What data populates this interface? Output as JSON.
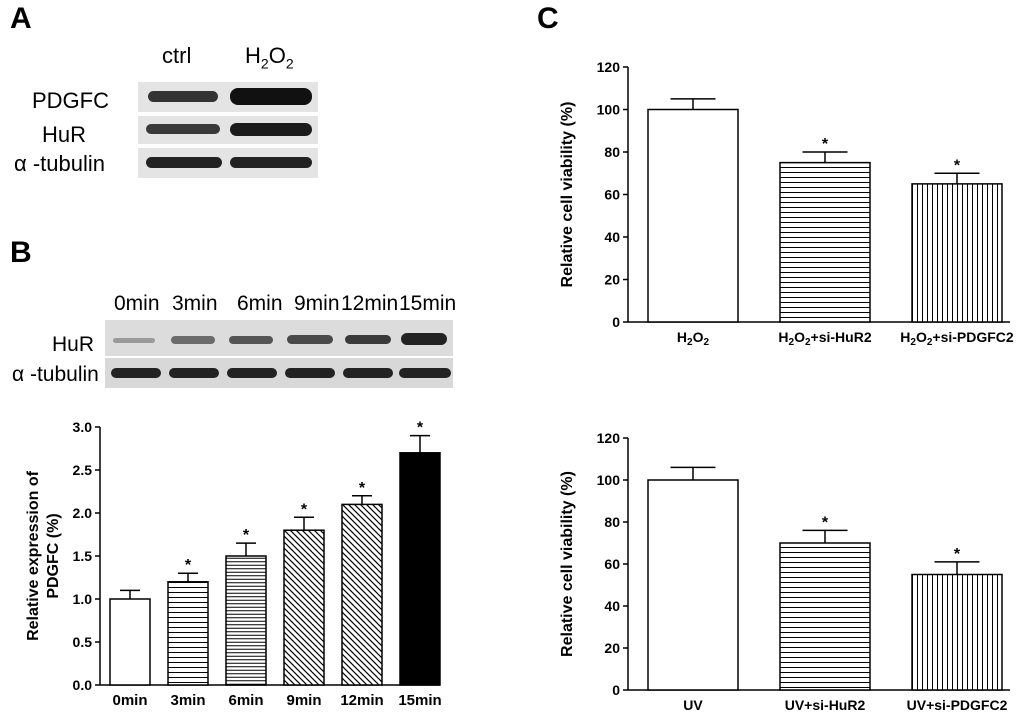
{
  "panels": {
    "a": "A",
    "b": "B",
    "c": "C"
  },
  "blot_a": {
    "lanes": [
      "ctrl",
      "H2O2"
    ],
    "proteins": [
      "PDGFC",
      "HuR",
      "α -tubulin"
    ]
  },
  "blot_b": {
    "lanes": [
      "0min",
      "3min",
      "6min",
      "9min",
      "12min",
      "15min"
    ],
    "proteins": [
      "HuR",
      "α -tubulin"
    ]
  },
  "chart_data": [
    {
      "id": "b",
      "type": "bar",
      "categories": [
        "0min",
        "3min",
        "6min",
        "9min",
        "12min",
        "15min"
      ],
      "values": [
        1.0,
        1.2,
        1.5,
        1.8,
        2.1,
        2.7
      ],
      "errors": [
        0.1,
        0.1,
        0.15,
        0.15,
        0.1,
        0.2
      ],
      "significant": [
        "",
        "*",
        "*",
        "*",
        "*",
        "*"
      ],
      "fills": [
        "white",
        "horizontal-lines",
        "horizontal-lines-dense",
        "diagonal-lines",
        "diagonal-lines",
        "black"
      ],
      "ylabel": "Relative expression of PDGFC (%)",
      "ylim": [
        0,
        3.0
      ],
      "yticks": [
        "0.0",
        "0.5",
        "1.0",
        "1.5",
        "2.0",
        "2.5",
        "3.0"
      ]
    },
    {
      "id": "c-top",
      "type": "bar",
      "categories": [
        "H₂O₂",
        "H₂O₂+si-HuR2",
        "H₂O₂+si-PDGFC2"
      ],
      "values": [
        100,
        75,
        65
      ],
      "errors": [
        5,
        5,
        5
      ],
      "significant": [
        "",
        "*",
        "*"
      ],
      "fills": [
        "white",
        "horizontal-lines",
        "vertical-lines"
      ],
      "ylabel": "Relative cell viability (%)",
      "ylim": [
        0,
        120
      ],
      "yticks": [
        "0",
        "20",
        "40",
        "60",
        "80",
        "100",
        "120"
      ]
    },
    {
      "id": "c-bottom",
      "type": "bar",
      "categories": [
        "UV",
        "UV+si-HuR2",
        "UV+si-PDGFC2"
      ],
      "values": [
        100,
        70,
        55
      ],
      "errors": [
        6,
        6,
        6
      ],
      "significant": [
        "",
        "*",
        "*"
      ],
      "fills": [
        "white",
        "horizontal-lines",
        "vertical-lines"
      ],
      "ylabel": "Relative cell viability (%)",
      "ylim": [
        0,
        120
      ],
      "yticks": [
        "0",
        "20",
        "40",
        "60",
        "80",
        "100",
        "120"
      ]
    }
  ]
}
